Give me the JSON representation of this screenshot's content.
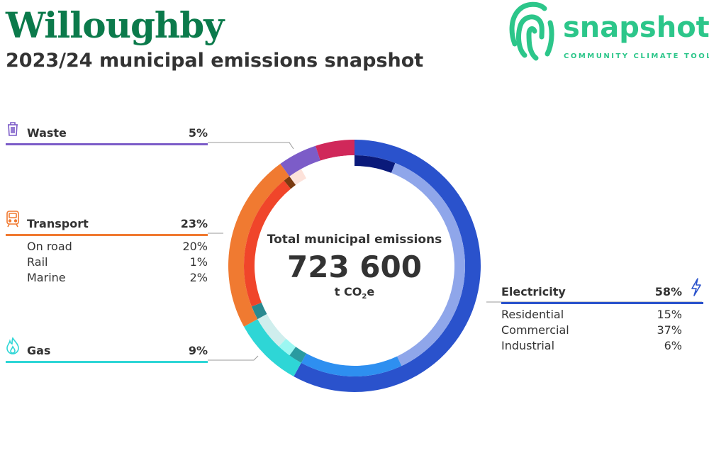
{
  "header": {
    "title": "Willoughby",
    "subtitle": "2023/24 municipal emissions snapshot"
  },
  "brand": {
    "name": "snapshot",
    "tagline": "COMMUNITY CLIMATE TOOL",
    "color": "#2cc68a"
  },
  "center": {
    "label": "Total municipal emissions",
    "value": "723 600",
    "unit_prefix": "t CO",
    "unit_sub": "2",
    "unit_suffix": "e"
  },
  "categories": {
    "waste": {
      "name": "Waste",
      "pct": "5%",
      "color": "#7c5cc8",
      "icon": "bin-icon"
    },
    "transport": {
      "name": "Transport",
      "pct": "23%",
      "color": "#f07a31",
      "icon": "train-icon",
      "subs": [
        {
          "name": "On road",
          "pct": "20%"
        },
        {
          "name": "Rail",
          "pct": "1%"
        },
        {
          "name": "Marine",
          "pct": "2%"
        }
      ]
    },
    "gas": {
      "name": "Gas",
      "pct": "9%",
      "color": "#2ed6d6",
      "icon": "flame-icon"
    },
    "electricity": {
      "name": "Electricity",
      "pct": "58%",
      "color": "#2a52cc",
      "icon": "lightning-icon",
      "subs": [
        {
          "name": "Residential",
          "pct": "15%"
        },
        {
          "name": "Commercial",
          "pct": "37%"
        },
        {
          "name": "Industrial",
          "pct": "6%"
        }
      ]
    }
  },
  "chart_data": {
    "type": "pie",
    "title": "Total municipal emissions",
    "total": 723600,
    "unit": "t CO2e",
    "outer_ring": [
      {
        "name": "Electricity",
        "value": 58,
        "color": "#2a52cc"
      },
      {
        "name": "Gas",
        "value": 9,
        "color": "#2ed6d6"
      },
      {
        "name": "Transport",
        "value": 23,
        "color": "#f07a31"
      },
      {
        "name": "Waste",
        "value": 5,
        "color": "#7c5cc8"
      },
      {
        "name": "",
        "value": 5,
        "color": "#d0285a"
      }
    ],
    "inner_ring": [
      {
        "name": "Industrial",
        "value": 6,
        "color": "#0a1a7a"
      },
      {
        "name": "Commercial",
        "value": 37,
        "color": "#8fa6ea"
      },
      {
        "name": "Residential",
        "value": 15,
        "color": "#2e8ff0"
      },
      {
        "name": "",
        "value": 2,
        "color": "#2a9aa0"
      },
      {
        "name": "",
        "value": 2,
        "color": "#9cf7f2"
      },
      {
        "name": "",
        "value": 5,
        "color": "#cfeeed"
      },
      {
        "name": "Marine",
        "value": 2,
        "color": "#2a8a90"
      },
      {
        "name": "On road",
        "value": 20,
        "color": "#f0452a"
      },
      {
        "name": "Rail",
        "value": 1,
        "color": "#7a3a10"
      },
      {
        "name": "",
        "value": 2,
        "color": "#fde2da"
      },
      {
        "name": "",
        "value": 8,
        "color": "#ffffff"
      }
    ]
  }
}
